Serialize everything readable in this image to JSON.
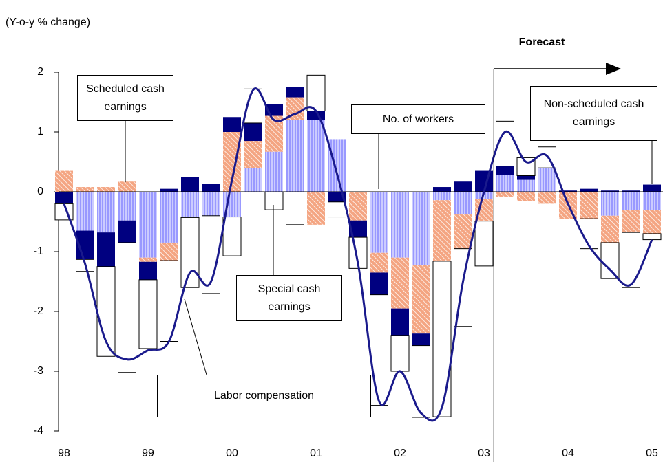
{
  "chart_data": {
    "type": "stacked-bar-line",
    "y_axis_label": "(Y-o-y % change)",
    "forecast_label": "Forecast",
    "categories": [
      "98",
      null,
      null,
      null,
      "99",
      null,
      null,
      null,
      "00",
      null,
      null,
      null,
      "01",
      null,
      null,
      null,
      "02",
      null,
      null,
      null,
      "03",
      null,
      null,
      null,
      "04",
      null,
      null,
      null,
      "05"
    ],
    "series": [
      {
        "name": "Scheduled cash earnings",
        "color": "#9999ff",
        "kind": "bar",
        "values": [
          0,
          -0.65,
          -0.68,
          -0.48,
          -1.1,
          -0.85,
          -0.43,
          -0.4,
          -0.42,
          0.4,
          0.67,
          1.2,
          1.2,
          0.88,
          0,
          -1.02,
          -1.1,
          -1.22,
          -0.14,
          -0.38,
          -0.12,
          0.28,
          0.2,
          0.4,
          0,
          0,
          -0.4,
          -0.3,
          -0.3
        ]
      },
      {
        "name": "Non-scheduled cash earnings",
        "color": "#f4a582",
        "kind": "bar",
        "values": [
          0.35,
          0.08,
          0.08,
          0.17,
          -0.07,
          -0.3,
          0,
          0,
          1.0,
          0.45,
          0.6,
          0.38,
          -0.55,
          0,
          -0.48,
          -0.33,
          -0.85,
          -1.15,
          -1.02,
          -0.57,
          -0.37,
          -0.08,
          -0.15,
          -0.2,
          -0.45,
          -0.45,
          -0.45,
          -0.38,
          -0.4
        ]
      },
      {
        "name": "No. of workers",
        "color": "#000080",
        "kind": "bar",
        "values": [
          -0.2,
          -0.48,
          -0.57,
          -0.37,
          -0.3,
          0.05,
          0.25,
          0.13,
          0.25,
          0.3,
          0.2,
          0.17,
          0.15,
          -0.17,
          -0.28,
          -0.37,
          -0.45,
          -0.2,
          0.08,
          0.17,
          0.35,
          0.15,
          0.07,
          0,
          0.02,
          0.05,
          0.02,
          0.02,
          0.12
        ]
      },
      {
        "name": "Special cash earnings",
        "color": "#ffffff",
        "kind": "bar",
        "values": [
          -0.27,
          -0.2,
          -1.5,
          -2.17,
          -1.15,
          -1.35,
          -1.17,
          -1.3,
          -0.65,
          0.57,
          -0.3,
          -0.55,
          0.6,
          -0.25,
          -0.52,
          -1.85,
          -0.6,
          -1.2,
          -2.6,
          -1.3,
          -0.75,
          0.75,
          0.3,
          0.35,
          0,
          -0.5,
          -0.6,
          -0.92,
          -0.1
        ]
      },
      {
        "name": "Labor compensation",
        "color": "#1a1a8c",
        "kind": "line",
        "values": [
          -0.2,
          -1.2,
          -2.5,
          -2.8,
          -2.65,
          -2.5,
          -1.35,
          -1.5,
          0.2,
          1.7,
          1.2,
          1.3,
          1.35,
          0.3,
          -1.2,
          -3.5,
          -3.0,
          -3.7,
          -3.6,
          -1.5,
          0.0,
          1.0,
          0.5,
          0.6,
          -0.2,
          -0.9,
          -1.3,
          -1.55,
          -0.8
        ]
      }
    ],
    "forecast_start_index": 21,
    "ylim": [
      -4,
      2
    ],
    "yticks": [
      -4,
      -3,
      -2,
      -1,
      0,
      1,
      2
    ]
  }
}
